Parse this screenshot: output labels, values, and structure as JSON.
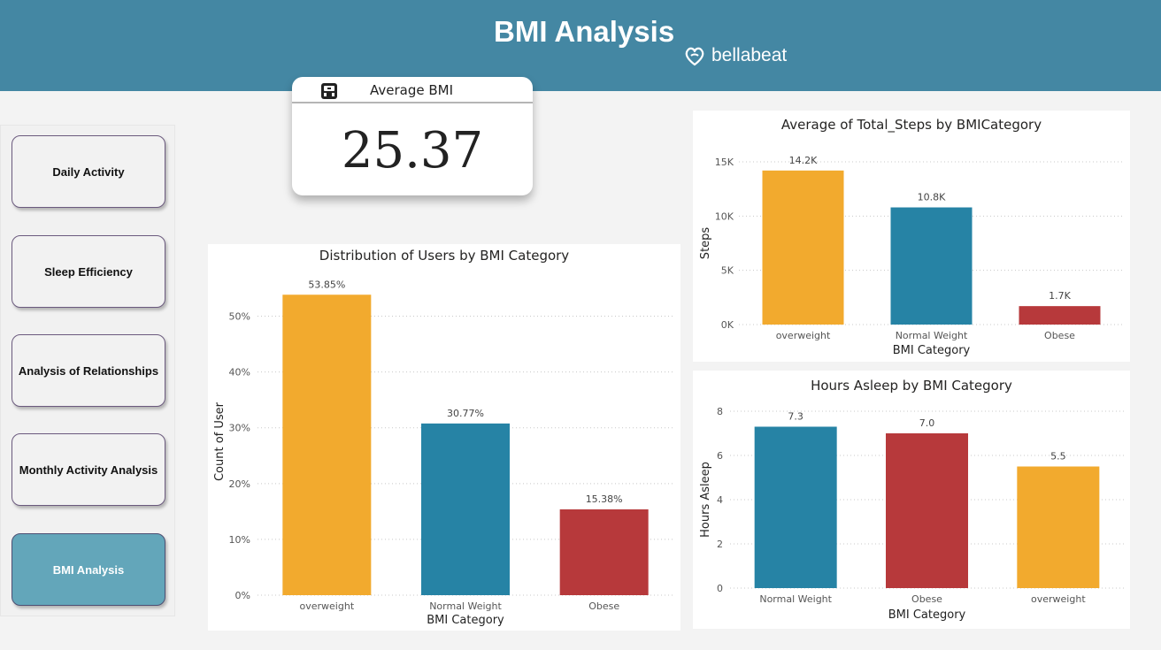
{
  "header": {
    "title": "BMI Analysis",
    "brand": "bellabeat",
    "brand_icon": "bellabeat-logo-icon"
  },
  "nav": {
    "items": [
      {
        "label": "Daily Activity",
        "active": false
      },
      {
        "label": "Sleep Efficiency",
        "active": false
      },
      {
        "label": "Analysis of Relationships",
        "active": false
      },
      {
        "label": "Monthly Activity Analysis",
        "active": false
      },
      {
        "label": "BMI Analysis",
        "active": true
      }
    ]
  },
  "kpi": {
    "title": "Average BMI",
    "value": "25.37",
    "icon": "scale-icon"
  },
  "colors": {
    "overweight": "#f2aa2e",
    "normal": "#2683a5",
    "obese": "#b7393b",
    "header": "#4487a3",
    "active_nav": "#63a6ba"
  },
  "chart_data": [
    {
      "type": "bar",
      "title": "Distribution of Users by BMI Category",
      "xlabel": "BMI Category",
      "ylabel": "Count of User",
      "categories": [
        "overweight",
        "Normal Weight",
        "Obese"
      ],
      "values": [
        53.85,
        30.77,
        15.38
      ],
      "value_labels": [
        "53.85%",
        "30.77%",
        "15.38%"
      ],
      "bar_colors": [
        "#f2aa2e",
        "#2683a5",
        "#b7393b"
      ],
      "yticks": [
        0,
        10,
        20,
        30,
        40,
        50
      ],
      "ytick_labels": [
        "0%",
        "10%",
        "20%",
        "30%",
        "40%",
        "50%"
      ],
      "ylim": [
        0,
        55
      ],
      "grid": true
    },
    {
      "type": "bar",
      "title": "Average of Total_Steps by BMICategory",
      "xlabel": "BMI Category",
      "ylabel": "Steps",
      "categories": [
        "overweight",
        "Normal Weight",
        "Obese"
      ],
      "values": [
        14200,
        10800,
        1700
      ],
      "value_labels": [
        "14.2K",
        "10.8K",
        "1.7K"
      ],
      "bar_colors": [
        "#f2aa2e",
        "#2683a5",
        "#b7393b"
      ],
      "yticks": [
        0,
        5000,
        10000,
        15000
      ],
      "ytick_labels": [
        "0K",
        "5K",
        "10K",
        "15K"
      ],
      "ylim": [
        0,
        15000
      ],
      "grid": true
    },
    {
      "type": "bar",
      "title": "Hours Asleep by BMI Category",
      "xlabel": "BMI Category",
      "ylabel": "Hours Asleep",
      "categories": [
        "Normal Weight",
        "Obese",
        "overweight"
      ],
      "values": [
        7.3,
        7.0,
        5.5
      ],
      "value_labels": [
        "7.3",
        "7.0",
        "5.5"
      ],
      "bar_colors": [
        "#2683a5",
        "#b7393b",
        "#f2aa2e"
      ],
      "yticks": [
        0,
        2,
        4,
        6,
        8
      ],
      "ytick_labels": [
        "0",
        "2",
        "4",
        "6",
        "8"
      ],
      "ylim": [
        0,
        8
      ],
      "grid": true
    }
  ]
}
